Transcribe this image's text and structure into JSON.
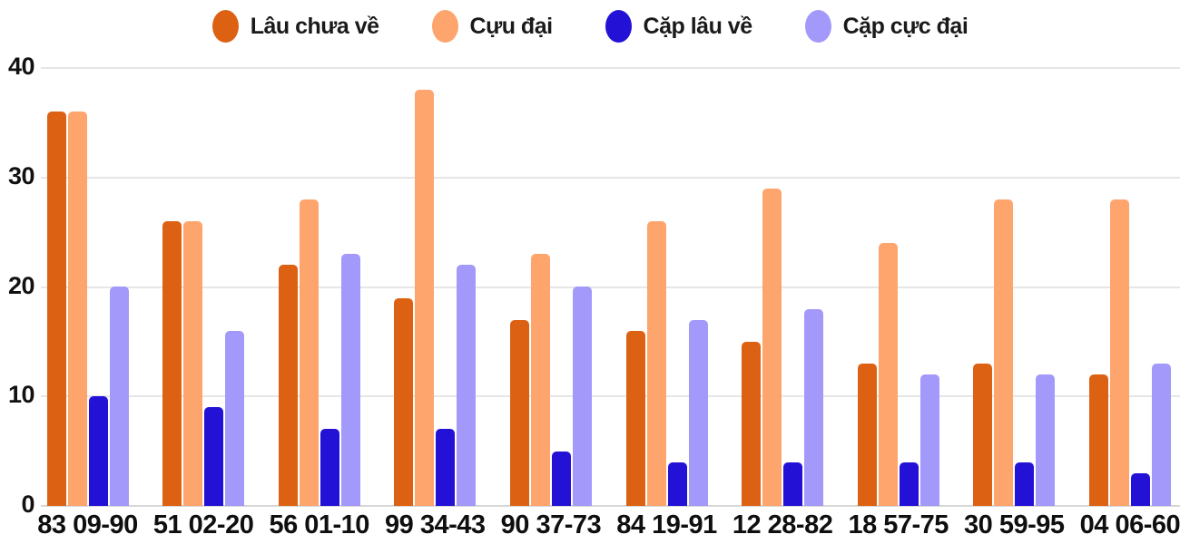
{
  "chart_data": {
    "type": "bar",
    "title": "",
    "xlabel": "",
    "ylabel": "",
    "ylim": [
      0,
      40
    ],
    "yticks": [
      0,
      10,
      20,
      30,
      40
    ],
    "grid": "horizontal",
    "legend_position": "top-center",
    "categories": [
      "83 09-90",
      "51 02-20",
      "56 01-10",
      "99 34-43",
      "90 37-73",
      "84 19-91",
      "12 28-82",
      "18 57-75",
      "30 59-95",
      "04 06-60"
    ],
    "series": [
      {
        "name": "Lâu chưa về",
        "color": "#dd6113",
        "values": [
          36,
          26,
          22,
          19,
          17,
          16,
          15,
          13,
          13,
          12
        ]
      },
      {
        "name": "Cựu đại",
        "color": "#fea46d",
        "values": [
          36,
          26,
          28,
          38,
          23,
          26,
          29,
          24,
          28,
          28
        ]
      },
      {
        "name": "Cặp lâu về",
        "color": "#2312d6",
        "values": [
          10,
          9,
          7,
          7,
          5,
          4,
          4,
          4,
          4,
          3
        ]
      },
      {
        "name": "Cặp cực đại",
        "color": "#a299fa",
        "values": [
          20,
          16,
          23,
          22,
          20,
          17,
          18,
          12,
          12,
          13
        ]
      }
    ],
    "colors": {
      "gridline": "#e6e6e6",
      "baseline": "#d7d7d7",
      "tick_text": "#111111",
      "legend_text": "#1a1a1a"
    }
  }
}
